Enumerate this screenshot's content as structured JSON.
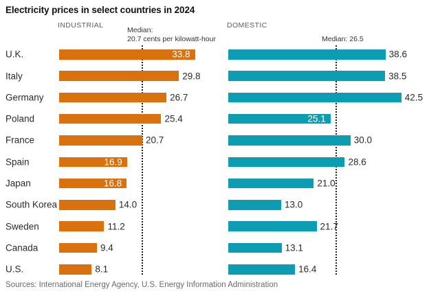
{
  "chart_data": {
    "type": "bar",
    "orientation": "horizontal",
    "title": "Electricity prices in select countries in 2024",
    "unit": "cents per kilowatt-hour",
    "grid": false,
    "categories": [
      "U.K.",
      "Italy",
      "Germany",
      "Poland",
      "France",
      "Spain",
      "Japan",
      "South Korea",
      "Sweden",
      "Canada",
      "U.S."
    ],
    "series": [
      {
        "name": "INDUSTRIAL",
        "color": "#d9720e",
        "median": 20.7,
        "median_label_lines": [
          "Median:",
          "20.7 cents per kilowatt-hour"
        ],
        "values": [
          33.8,
          29.8,
          26.7,
          25.4,
          20.7,
          16.9,
          16.8,
          14.0,
          11.2,
          9.4,
          8.1
        ],
        "value_label_inside": [
          true,
          false,
          false,
          false,
          false,
          true,
          true,
          false,
          false,
          false,
          false
        ]
      },
      {
        "name": "DOMESTIC",
        "color": "#0d9db3",
        "median": 26.5,
        "median_label_lines": [
          "Median: 26.5"
        ],
        "values": [
          38.6,
          38.5,
          42.5,
          25.1,
          30.0,
          28.6,
          21.0,
          13.0,
          21.7,
          13.1,
          16.4
        ],
        "value_label_inside": [
          false,
          false,
          false,
          true,
          false,
          false,
          false,
          false,
          false,
          false,
          false
        ]
      }
    ],
    "source": "Sources: International Energy Agency, U.S. Energy Information Administration"
  }
}
